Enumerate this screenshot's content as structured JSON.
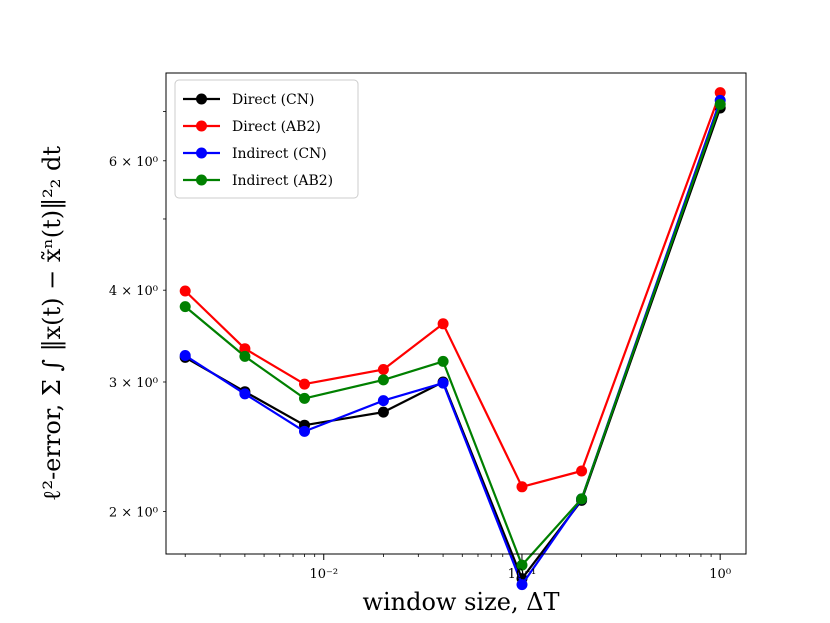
{
  "chart_data": {
    "type": "line",
    "xscale": "log",
    "yscale": "log",
    "xlabel": "window size, ΔT",
    "ylabel": "ℓ²-error, Σ ∫ ‖x(t) − x̃ⁿ(t)‖²₂ dt",
    "xlim": [
      0.0016,
      1.35
    ],
    "ylim": [
      1.75,
      7.9
    ],
    "x_ticks": [
      {
        "value": 0.01,
        "label": "10⁻²"
      },
      {
        "value": 0.1,
        "label": "10⁻¹"
      },
      {
        "value": 1,
        "label": "10⁰"
      }
    ],
    "y_ticks": [
      {
        "value": 2,
        "label": "2 × 10⁰"
      },
      {
        "value": 3,
        "label": "3 × 10⁰"
      },
      {
        "value": 4,
        "label": "4 × 10⁰"
      },
      {
        "value": 6,
        "label": "6 × 10⁰"
      }
    ],
    "x": [
      0.002,
      0.004,
      0.008,
      0.02,
      0.04,
      0.1,
      0.2,
      1.0
    ],
    "series": [
      {
        "name": "Direct (CN)",
        "color": "#000000",
        "values": [
          3.24,
          2.91,
          2.62,
          2.73,
          3.0,
          1.62,
          2.07,
          7.08
        ]
      },
      {
        "name": "Direct (AB2)",
        "color": "#ff0000",
        "values": [
          3.99,
          3.33,
          2.98,
          3.12,
          3.6,
          2.16,
          2.27,
          7.43
        ]
      },
      {
        "name": "Indirect (CN)",
        "color": "#0000ff",
        "values": [
          3.26,
          2.89,
          2.57,
          2.83,
          2.99,
          1.59,
          2.08,
          7.25
        ]
      },
      {
        "name": "Indirect (AB2)",
        "color": "#008000",
        "values": [
          3.8,
          3.25,
          2.85,
          3.02,
          3.2,
          1.69,
          2.08,
          7.16
        ]
      }
    ],
    "legend_position": "top-left",
    "grid": false
  }
}
